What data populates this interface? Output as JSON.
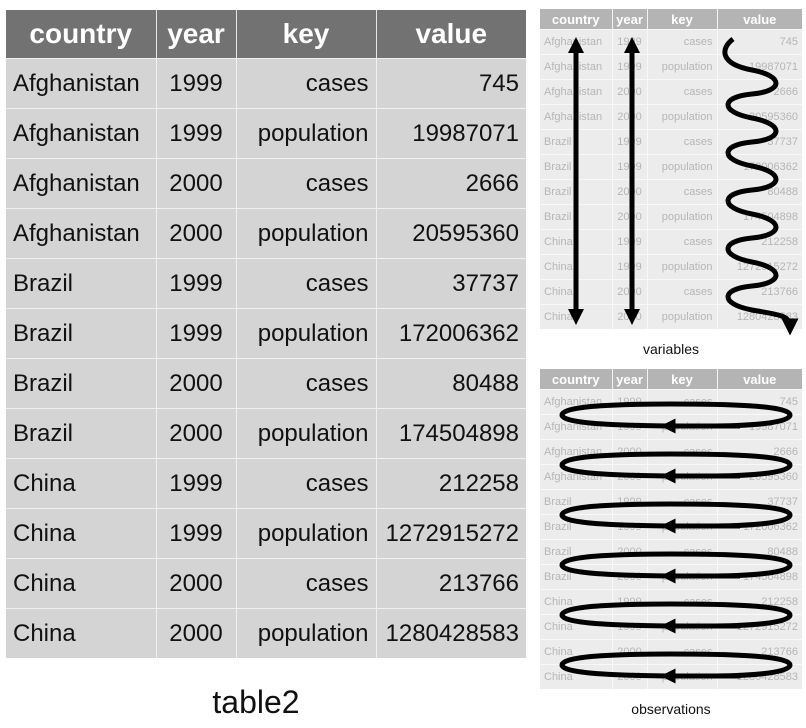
{
  "table": {
    "headers": [
      "country",
      "year",
      "key",
      "value"
    ],
    "rows": [
      [
        "Afghanistan",
        "1999",
        "cases",
        "745"
      ],
      [
        "Afghanistan",
        "1999",
        "population",
        "19987071"
      ],
      [
        "Afghanistan",
        "2000",
        "cases",
        "2666"
      ],
      [
        "Afghanistan",
        "2000",
        "population",
        "20595360"
      ],
      [
        "Brazil",
        "1999",
        "cases",
        "37737"
      ],
      [
        "Brazil",
        "1999",
        "population",
        "172006362"
      ],
      [
        "Brazil",
        "2000",
        "cases",
        "80488"
      ],
      [
        "Brazil",
        "2000",
        "population",
        "174504898"
      ],
      [
        "China",
        "1999",
        "cases",
        "212258"
      ],
      [
        "China",
        "1999",
        "population",
        "1272915272"
      ],
      [
        "China",
        "2000",
        "cases",
        "213766"
      ],
      [
        "China",
        "2000",
        "population",
        "1280428583"
      ]
    ],
    "caption": "table2"
  },
  "variables_panel": {
    "caption": "variables"
  },
  "observations_panel": {
    "caption": "observations"
  },
  "colors": {
    "header_bg": "#727272",
    "cell_bg": "#d4d4d4",
    "mini_header_bg": "#b4b4b4",
    "mini_cell_bg": "#ececec",
    "arrow": "#000000"
  }
}
